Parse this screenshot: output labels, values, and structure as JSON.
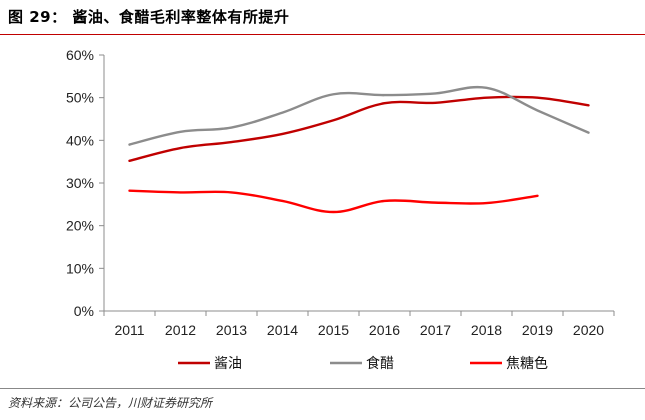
{
  "figure": {
    "title": "图 29： 酱油、食醋毛利率整体有所提升",
    "source": "资料来源：公司公告，川财证券研究所"
  },
  "chart_data": {
    "type": "line",
    "x": [
      "2011",
      "2012",
      "2013",
      "2014",
      "2015",
      "2016",
      "2017",
      "2018",
      "2019",
      "2020"
    ],
    "ylim": [
      0,
      60
    ],
    "yticks": [
      "0%",
      "10%",
      "20%",
      "30%",
      "40%",
      "50%",
      "60%"
    ],
    "grid": false,
    "legend_position": "bottom",
    "series": [
      {
        "name": "酱油",
        "color": "#c00000",
        "values": [
          35.2,
          38.2,
          39.6,
          41.5,
          44.7,
          48.7,
          48.8,
          50.0,
          50.0,
          48.2
        ]
      },
      {
        "name": "食醋",
        "color": "#8c8c8c",
        "values": [
          39.0,
          42.0,
          43.0,
          46.5,
          50.8,
          50.6,
          51.0,
          52.3,
          47.0,
          41.8
        ]
      },
      {
        "name": "焦糖色",
        "color": "#ff0000",
        "values": [
          28.2,
          27.8,
          27.8,
          25.8,
          23.2,
          25.8,
          25.4,
          25.3,
          27.0,
          null
        ]
      }
    ]
  }
}
